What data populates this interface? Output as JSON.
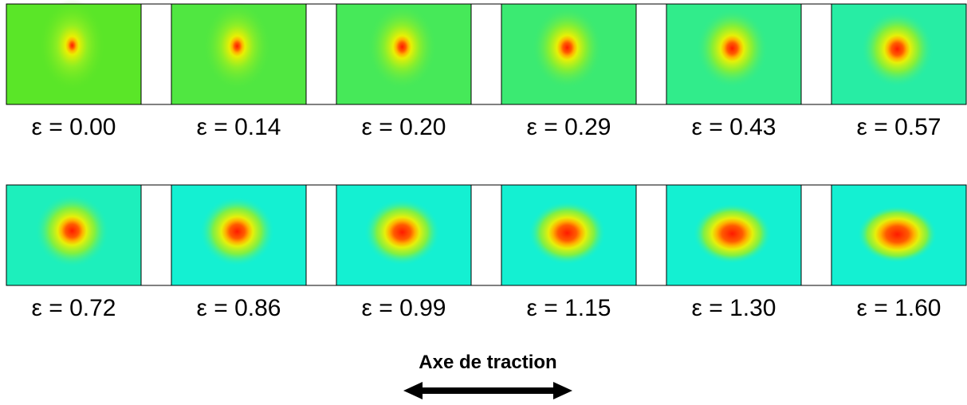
{
  "rows": [
    [
      "ε = 0.00",
      "ε = 0.14",
      "ε = 0.20",
      "ε = 0.29",
      "ε = 0.43",
      "ε = 0.57"
    ],
    [
      "ε = 0.72",
      "ε = 0.86",
      "ε = 0.99",
      "ε = 1.15",
      "ε = 1.30",
      "ε = 1.60"
    ]
  ],
  "axis_label": "Axe de traction"
}
